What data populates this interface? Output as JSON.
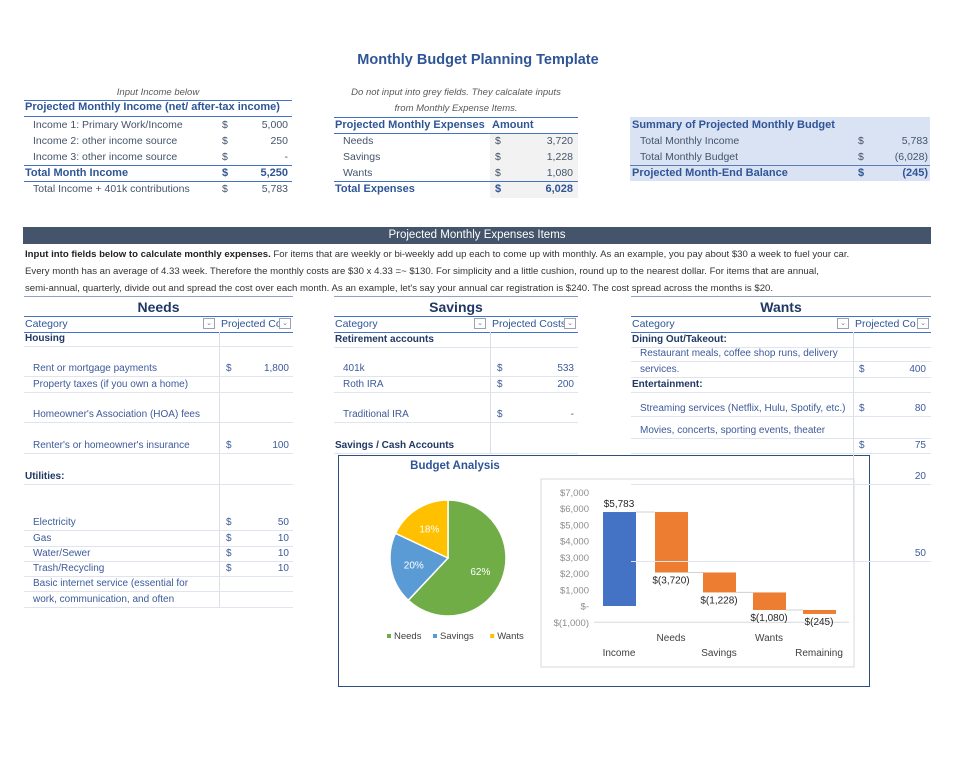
{
  "title": "Monthly Budget Planning Template",
  "income": {
    "note": "Input Income below",
    "header": "Projected Monthly Income (net/ after-tax income)",
    "rows": [
      {
        "label": "Income 1: Primary Work/Income",
        "cur": "$",
        "value": "5,000"
      },
      {
        "label": "Income 2: other income source",
        "cur": "$",
        "value": "250"
      },
      {
        "label": "Income 3: other income source",
        "cur": "$",
        "value": "-"
      }
    ],
    "total": {
      "label": "Total Month Income",
      "cur": "$",
      "value": "5,250"
    },
    "extra": {
      "label": "Total Income + 401k contributions",
      "cur": "$",
      "value": "5,783"
    }
  },
  "expenses": {
    "note1": "Do not input into grey fields. They calcalate inputs",
    "note2": "from Monthly Expense Items.",
    "header": "Projected Monthly Expenses",
    "amount_header": "Amount",
    "rows": [
      {
        "label": "Needs",
        "cur": "$",
        "value": "3,720"
      },
      {
        "label": "Savings",
        "cur": "$",
        "value": "1,228"
      },
      {
        "label": "Wants",
        "cur": "$",
        "value": "1,080"
      }
    ],
    "total": {
      "label": "Total Expenses",
      "cur": "$",
      "value": "6,028"
    }
  },
  "summary": {
    "header": "Summary of Projected Monthly Budget",
    "rows": [
      {
        "label": "Total Monthly Income",
        "cur": "$",
        "value": "5,783"
      },
      {
        "label": "Total Monthly Budget",
        "cur": "$",
        "value": "(6,028)"
      }
    ],
    "total": {
      "label": "Projected Month-End Balance",
      "cur": "$",
      "value": "(245)"
    }
  },
  "items": {
    "banner": "Projected Monthly Expenses Items",
    "intro_bold": "Input into fields below to calculate monthly expenses.",
    "intro_1": " For items that are weekly or bi-weekly add up each to come up with monthly. As an example, you pay about $30 a week to fuel your car.",
    "intro_2": "Every month has an average of 4.33 week.  Therefore the monthly costs are $30 x 4.33 =~ $130. For simplicity and a little cushion, round up to the nearest dollar.  For items that are annual,",
    "intro_3": "semi-annual, quarterly, divide out and spread the cost over each month. As an example, let's say your annual car registration is $240.  The cost spread across the months is $20."
  },
  "needs": {
    "title": "Needs",
    "col1": "Category",
    "col2": "Projected Co",
    "rows": [
      {
        "label": "Housing",
        "bold": true
      },
      {
        "label": "Rent or mortgage payments",
        "cur": "$",
        "value": "1,800"
      },
      {
        "label": "Property taxes (if you own a home)"
      },
      {
        "label": "Homeowner's Association (HOA) fees"
      },
      {
        "label": "Renter's or homeowner's insurance",
        "cur": "$",
        "value": "100"
      },
      {
        "label": "Utilities:",
        "bold": true
      },
      {
        "label": "Electricity",
        "cur": "$",
        "value": "50"
      },
      {
        "label": "Gas",
        "cur": "$",
        "value": "10"
      },
      {
        "label": "Water/Sewer",
        "cur": "$",
        "value": "10"
      },
      {
        "label": "Trash/Recycling",
        "cur": "$",
        "value": "10"
      },
      {
        "label": "Basic internet service (essential for"
      },
      {
        "label": "work, communication, and often"
      }
    ]
  },
  "savings": {
    "title": "Savings",
    "col1": "Category",
    "col2": "Projected Costs",
    "rows": [
      {
        "label": "Retirement accounts",
        "bold": true
      },
      {
        "label": "401k",
        "cur": "$",
        "value": "533"
      },
      {
        "label": "Roth IRA",
        "cur": "$",
        "value": "200"
      },
      {
        "label": "Traditional IRA",
        "cur": "$",
        "value": "-"
      },
      {
        "label": "Savings / Cash Accounts",
        "bold": true
      }
    ]
  },
  "wants": {
    "title": "Wants",
    "col1": "Category",
    "col2": "Projected Co",
    "rows": [
      {
        "label": "Dining Out/Takeout:",
        "bold": true
      },
      {
        "label": "Restaurant meals, coffee shop runs, delivery"
      },
      {
        "label": "services.",
        "cur": "$",
        "value": "400"
      },
      {
        "label": "Entertainment:",
        "bold": true
      },
      {
        "label": "Streaming services (Netflix, Hulu, Spotify, etc.)",
        "cur": "$",
        "value": "80"
      },
      {
        "label": "Movies, concerts, sporting events, theater"
      },
      {
        "cur": "$",
        "value": "75"
      },
      {
        "value": "20"
      },
      {
        "value": "50"
      }
    ]
  },
  "chart_data": [
    {
      "type": "pie",
      "title": "Budget Analysis",
      "categories": [
        "Needs",
        "Savings",
        "Wants"
      ],
      "values": [
        62,
        20,
        18
      ],
      "labels": [
        "62%",
        "20%",
        "18%"
      ],
      "colors": [
        "#70ad47",
        "#5b9bd5",
        "#ffc000"
      ],
      "legend": "bottom"
    },
    {
      "type": "bar",
      "subtype": "waterfall",
      "categories": [
        "Income",
        "Needs",
        "Savings",
        "Wants",
        "Remaining"
      ],
      "values": [
        5783,
        -3720,
        -1228,
        -1080,
        -245
      ],
      "data_labels": [
        "$5,783",
        "$(3,720)",
        "$(1,228)",
        "$(1,080)",
        "$(245)"
      ],
      "ylim": [
        -1000,
        7000
      ],
      "yticks": [
        "$(1,000)",
        "$-",
        "$1,000",
        "$2,000",
        "$3,000",
        "$4,000",
        "$5,000",
        "$6,000",
        "$7,000"
      ],
      "colors": {
        "total": "#4472c4",
        "decrease": "#ed7d31"
      }
    }
  ]
}
